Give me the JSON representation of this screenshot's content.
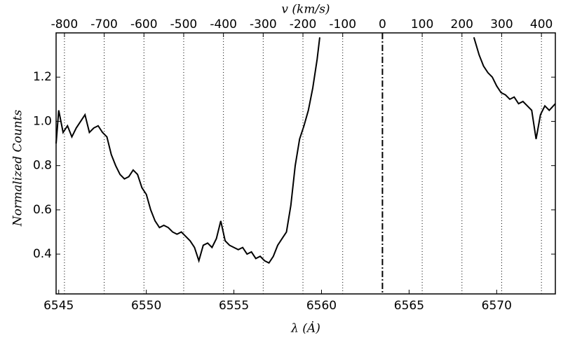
{
  "chart_data": {
    "type": "line",
    "xlabel": "λ (Ȧ)",
    "ylabel": "Normalized Counts",
    "x2label": "v (km/s)",
    "xlim": [
      6544.85,
      6573.35
    ],
    "xticks": [
      6545,
      6550,
      6555,
      6560,
      6565,
      6570
    ],
    "ylim": [
      0.22,
      1.4
    ],
    "yticks": [
      0.4,
      0.6,
      0.8,
      {
        "value": 1,
        "label": "1.0"
      },
      1.2
    ],
    "x2lim": [
      -821,
      435
    ],
    "x2ticks": [
      -800,
      -700,
      -600,
      -500,
      -400,
      -300,
      -200,
      -100,
      0,
      100,
      200,
      300,
      400
    ],
    "grid": true,
    "reference_line": 0,
    "color": "#000000",
    "x": [
      6544.85,
      6545.0,
      6545.25,
      6545.5,
      6545.75,
      6546.0,
      6546.25,
      6546.5,
      6546.75,
      6547.0,
      6547.25,
      6547.5,
      6547.75,
      6548.0,
      6548.25,
      6548.5,
      6548.75,
      6549.0,
      6549.25,
      6549.5,
      6549.75,
      6550.0,
      6550.25,
      6550.5,
      6550.75,
      6551.0,
      6551.25,
      6551.5,
      6551.75,
      6552.0,
      6552.25,
      6552.5,
      6552.75,
      6553.0,
      6553.25,
      6553.5,
      6553.75,
      6554.0,
      6554.25,
      6554.5,
      6554.75,
      6555.0,
      6555.25,
      6555.5,
      6555.75,
      6556.0,
      6556.25,
      6556.5,
      6556.75,
      6557.0,
      6557.25,
      6557.5,
      6557.75,
      6558.0,
      6558.25,
      6558.5,
      6558.75,
      6559.0,
      6559.25,
      6559.5,
      6559.75,
      6559.9,
      6564.3,
      6568.7,
      6569.0,
      6569.25,
      6569.5,
      6569.75,
      6570.0,
      6570.25,
      6570.5,
      6570.75,
      6571.0,
      6571.25,
      6571.5,
      6571.75,
      6572.0,
      6572.25,
      6572.5,
      6572.75,
      6573.0,
      6573.35
    ],
    "values": [
      0.9,
      1.05,
      0.95,
      0.98,
      0.93,
      0.97,
      1.0,
      1.03,
      0.95,
      0.97,
      0.98,
      0.95,
      0.93,
      0.85,
      0.8,
      0.76,
      0.74,
      0.75,
      0.78,
      0.76,
      0.7,
      0.67,
      0.6,
      0.55,
      0.52,
      0.53,
      0.52,
      0.5,
      0.49,
      0.5,
      0.48,
      0.46,
      0.43,
      0.37,
      0.44,
      0.45,
      0.43,
      0.47,
      0.55,
      0.46,
      0.44,
      0.43,
      0.42,
      0.43,
      0.4,
      0.41,
      0.38,
      0.39,
      0.37,
      0.36,
      0.39,
      0.44,
      0.47,
      0.5,
      0.62,
      0.8,
      0.92,
      0.98,
      1.05,
      1.15,
      1.28,
      1.38,
      null,
      1.38,
      1.3,
      1.25,
      1.22,
      1.2,
      1.16,
      1.13,
      1.12,
      1.1,
      1.11,
      1.08,
      1.09,
      1.07,
      1.05,
      0.92,
      1.03,
      1.07,
      1.05,
      1.08
    ]
  }
}
